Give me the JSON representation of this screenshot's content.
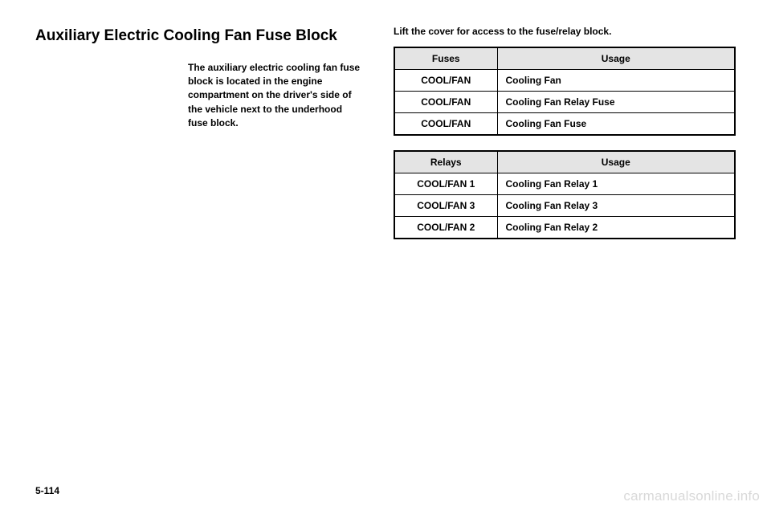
{
  "title": "Auxiliary Electric Cooling Fan Fuse Block",
  "intro": "The auxiliary electric cooling fan fuse block is located in the engine compartment on the driver's side of the vehicle next to the underhood fuse block.",
  "caption": "Lift the cover for access to the fuse/relay block.",
  "fuses_table": {
    "columns": [
      "Fuses",
      "Usage"
    ],
    "rows": [
      [
        "COOL/FAN",
        "Cooling Fan"
      ],
      [
        "COOL/FAN",
        "Cooling Fan Relay Fuse"
      ],
      [
        "COOL/FAN",
        "Cooling Fan Fuse"
      ]
    ]
  },
  "relays_table": {
    "columns": [
      "Relays",
      "Usage"
    ],
    "rows": [
      [
        "COOL/FAN 1",
        "Cooling Fan Relay 1"
      ],
      [
        "COOL/FAN 3",
        "Cooling Fan Relay 3"
      ],
      [
        "COOL/FAN 2",
        "Cooling Fan Relay 2"
      ]
    ]
  },
  "page_number": "5-114",
  "watermark": "carmanualsonline.info"
}
